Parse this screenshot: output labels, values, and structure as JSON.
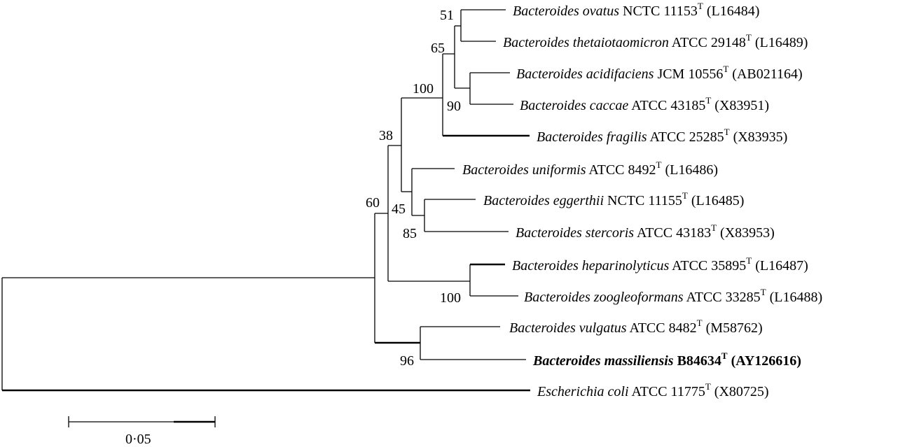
{
  "taxa": [
    {
      "genus": "Bacteroides",
      "species": "ovatus",
      "strain": "NCTC 11153",
      "sup": "T",
      "accession": "(L16484)",
      "bold": false
    },
    {
      "genus": "Bacteroides",
      "species": "thetaiotaomicron",
      "strain": "ATCC 29148",
      "sup": "T",
      "accession": "(L16489)",
      "bold": false
    },
    {
      "genus": "Bacteroides",
      "species": "acidifaciens",
      "strain": "JCM 10556",
      "sup": "T",
      "accession": "(AB021164)",
      "bold": false
    },
    {
      "genus": "Bacteroides",
      "species": "caccae",
      "strain": "ATCC 43185",
      "sup": "T",
      "accession": "(X83951)",
      "bold": false
    },
    {
      "genus": "Bacteroides",
      "species": "fragilis",
      "strain": "ATCC 25285",
      "sup": "T",
      "accession": "(X83935)",
      "bold": false
    },
    {
      "genus": "Bacteroides",
      "species": "uniformis",
      "strain": "ATCC 8492",
      "sup": "T",
      "accession": "(L16486)",
      "bold": false
    },
    {
      "genus": "Bacteroides",
      "species": "eggerthii",
      "strain": "NCTC 11155",
      "sup": "T",
      "accession": "(L16485)",
      "bold": false
    },
    {
      "genus": "Bacteroides",
      "species": "stercoris",
      "strain": "ATCC 43183",
      "sup": "T",
      "accession": "(X83953)",
      "bold": false
    },
    {
      "genus": "Bacteroides",
      "species": "heparinolyticus",
      "strain": "ATCC 35895",
      "sup": "T",
      "accession": "(L16487)",
      "bold": false
    },
    {
      "genus": "Bacteroides",
      "species": "zoogleoformans",
      "strain": "ATCC 33285",
      "sup": "T",
      "accession": "(L16488)",
      "bold": false
    },
    {
      "genus": "Bacteroides",
      "species": "vulgatus",
      "strain": "ATCC 8482",
      "sup": "T",
      "accession": "(M58762)",
      "bold": false
    },
    {
      "genus": "Bacteroides",
      "species": "massiliensis",
      "strain": "B84634",
      "sup": "T",
      "accession": "(AY126616)",
      "bold": true
    },
    {
      "genus": "Escherichia",
      "species": "coli",
      "strain": "ATCC 11775",
      "sup": "T",
      "accession": "(X80725)",
      "bold": false
    }
  ],
  "bootstrap": [
    "51",
    "65",
    "100",
    "90",
    "38",
    "45",
    "85",
    "60",
    "100",
    "96"
  ],
  "scale_bar": {
    "label": "0·05"
  }
}
